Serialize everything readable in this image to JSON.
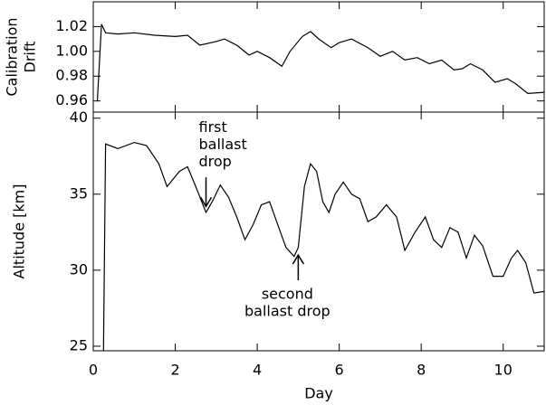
{
  "chart_data": [
    {
      "type": "line",
      "ylabel": [
        "Calibration",
        "Drift"
      ],
      "color": "#000000",
      "x": [
        0.1,
        0.2,
        0.3,
        0.6,
        1.0,
        1.5,
        2.0,
        2.3,
        2.6,
        3.0,
        3.2,
        3.5,
        3.8,
        4.0,
        4.3,
        4.6,
        4.8,
        5.1,
        5.3,
        5.5,
        5.8,
        6.0,
        6.3,
        6.7,
        7.0,
        7.3,
        7.6,
        7.9,
        8.2,
        8.5,
        8.8,
        9.0,
        9.2,
        9.5,
        9.8,
        10.1,
        10.3,
        10.6,
        11.0
      ],
      "values": [
        0.96,
        1.022,
        1.015,
        1.014,
        1.015,
        1.013,
        1.012,
        1.013,
        1.005,
        1.008,
        1.01,
        1.005,
        0.997,
        1.0,
        0.995,
        0.988,
        1.0,
        1.012,
        1.016,
        1.01,
        1.003,
        1.007,
        1.01,
        1.003,
        0.996,
        1.0,
        0.993,
        0.995,
        0.99,
        0.993,
        0.985,
        0.986,
        0.99,
        0.985,
        0.975,
        0.978,
        0.974,
        0.966,
        0.967
      ],
      "xlim": [
        0,
        11
      ],
      "ylim": [
        0.951,
        1.04
      ],
      "xticks": [
        0,
        2,
        4,
        6,
        8,
        10
      ],
      "yticks": [
        0.96,
        0.98,
        {
          "value": 1,
          "label": "1.00"
        },
        1.02
      ]
    },
    {
      "type": "line",
      "xlabel": "Day",
      "ylabel": "Altitude [km]",
      "color": "#000000",
      "x": [
        0.25,
        0.3,
        0.6,
        1.0,
        1.3,
        1.6,
        1.8,
        2.1,
        2.3,
        2.5,
        2.75,
        2.9,
        3.1,
        3.3,
        3.5,
        3.7,
        3.9,
        4.1,
        4.3,
        4.5,
        4.7,
        4.9,
        5.0,
        5.15,
        5.3,
        5.45,
        5.6,
        5.75,
        5.9,
        6.1,
        6.3,
        6.5,
        6.7,
        6.9,
        7.15,
        7.4,
        7.6,
        7.85,
        8.1,
        8.3,
        8.5,
        8.7,
        8.9,
        9.1,
        9.3,
        9.5,
        9.75,
        10.0,
        10.2,
        10.35,
        10.55,
        10.75,
        11.0
      ],
      "values": [
        24.7,
        38.3,
        38.0,
        38.4,
        38.2,
        37.0,
        35.5,
        36.5,
        36.8,
        35.5,
        33.8,
        34.5,
        35.6,
        34.8,
        33.5,
        32.0,
        33.0,
        34.3,
        34.5,
        33.0,
        31.5,
        30.9,
        31.5,
        35.5,
        37.0,
        36.5,
        34.5,
        33.8,
        35.0,
        35.8,
        35.0,
        34.7,
        33.2,
        33.5,
        34.3,
        33.5,
        31.3,
        32.5,
        33.5,
        32.0,
        31.5,
        32.8,
        32.5,
        30.8,
        32.3,
        31.6,
        29.6,
        29.6,
        30.8,
        31.3,
        30.5,
        28.5,
        28.6
      ],
      "xlim": [
        0,
        11
      ],
      "ylim": [
        24.7,
        40.4
      ],
      "xticks": [
        0,
        2,
        4,
        6,
        8,
        10
      ],
      "yticks": [
        25,
        30,
        35,
        40
      ],
      "annotations": [
        {
          "lines": [
            "first",
            "ballast",
            "drop"
          ],
          "x": 2.75,
          "y": 34.2,
          "arrow": "down"
        },
        {
          "lines": [
            "second",
            "ballast drop"
          ],
          "x": 5.0,
          "y": 31.0,
          "arrow": "up"
        }
      ]
    }
  ]
}
